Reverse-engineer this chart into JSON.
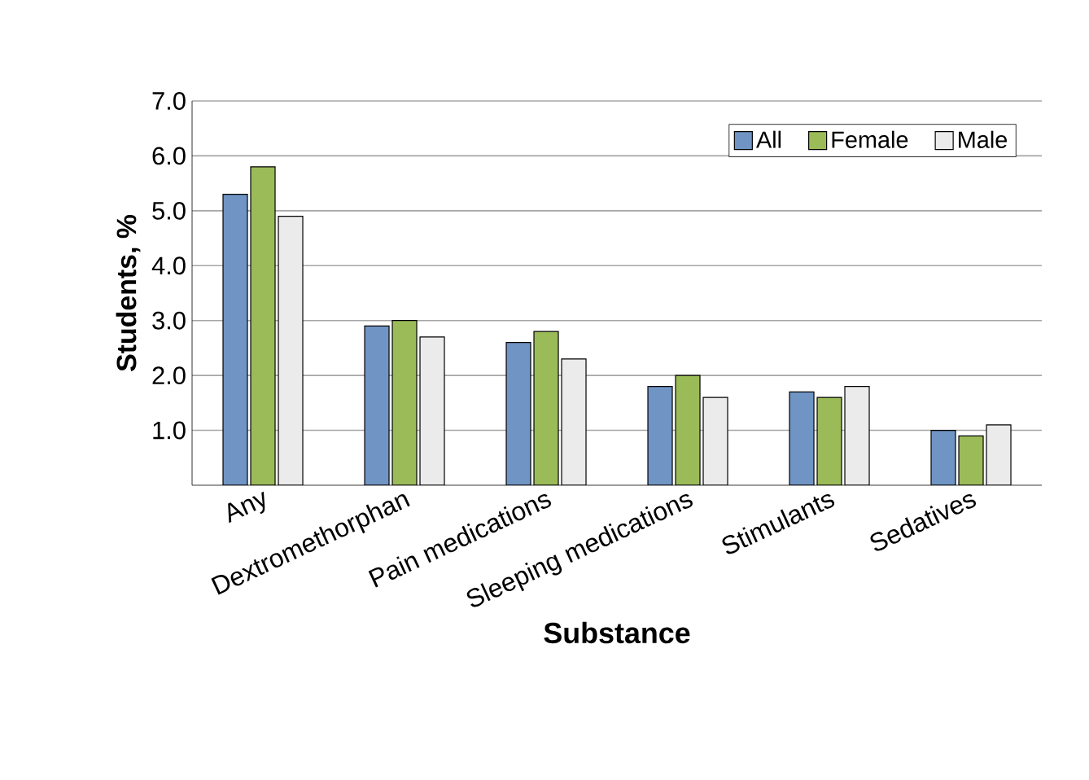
{
  "chart_data": {
    "type": "bar",
    "xlabel": "Substance",
    "ylabel": "Students, %",
    "categories": [
      "Any",
      "Dextromethorphan",
      "Pain medications",
      "Sleeping medications",
      "Stimulants",
      "Sedatives"
    ],
    "series": [
      {
        "name": "All",
        "color": "#7094c4",
        "values": [
          5.3,
          2.9,
          2.6,
          1.8,
          1.7,
          1.0
        ]
      },
      {
        "name": "Female",
        "color": "#9bbb59",
        "values": [
          5.8,
          3.0,
          2.8,
          2.0,
          1.6,
          0.9
        ]
      },
      {
        "name": "Male",
        "color": "#ebebeb",
        "values": [
          4.9,
          2.7,
          2.3,
          1.6,
          1.8,
          1.1
        ]
      }
    ],
    "ylim": [
      0,
      7
    ],
    "yticks": [
      {
        "value": 1,
        "label": "1.0"
      },
      {
        "value": 2,
        "label": "2.0"
      },
      {
        "value": 3,
        "label": "3.0"
      },
      {
        "value": 4,
        "label": "4.0"
      },
      {
        "value": 5,
        "label": "5.0"
      },
      {
        "value": 6,
        "label": "6.0"
      },
      {
        "value": 7,
        "label": "7.0"
      }
    ],
    "grid": "y",
    "legend": "top right"
  }
}
